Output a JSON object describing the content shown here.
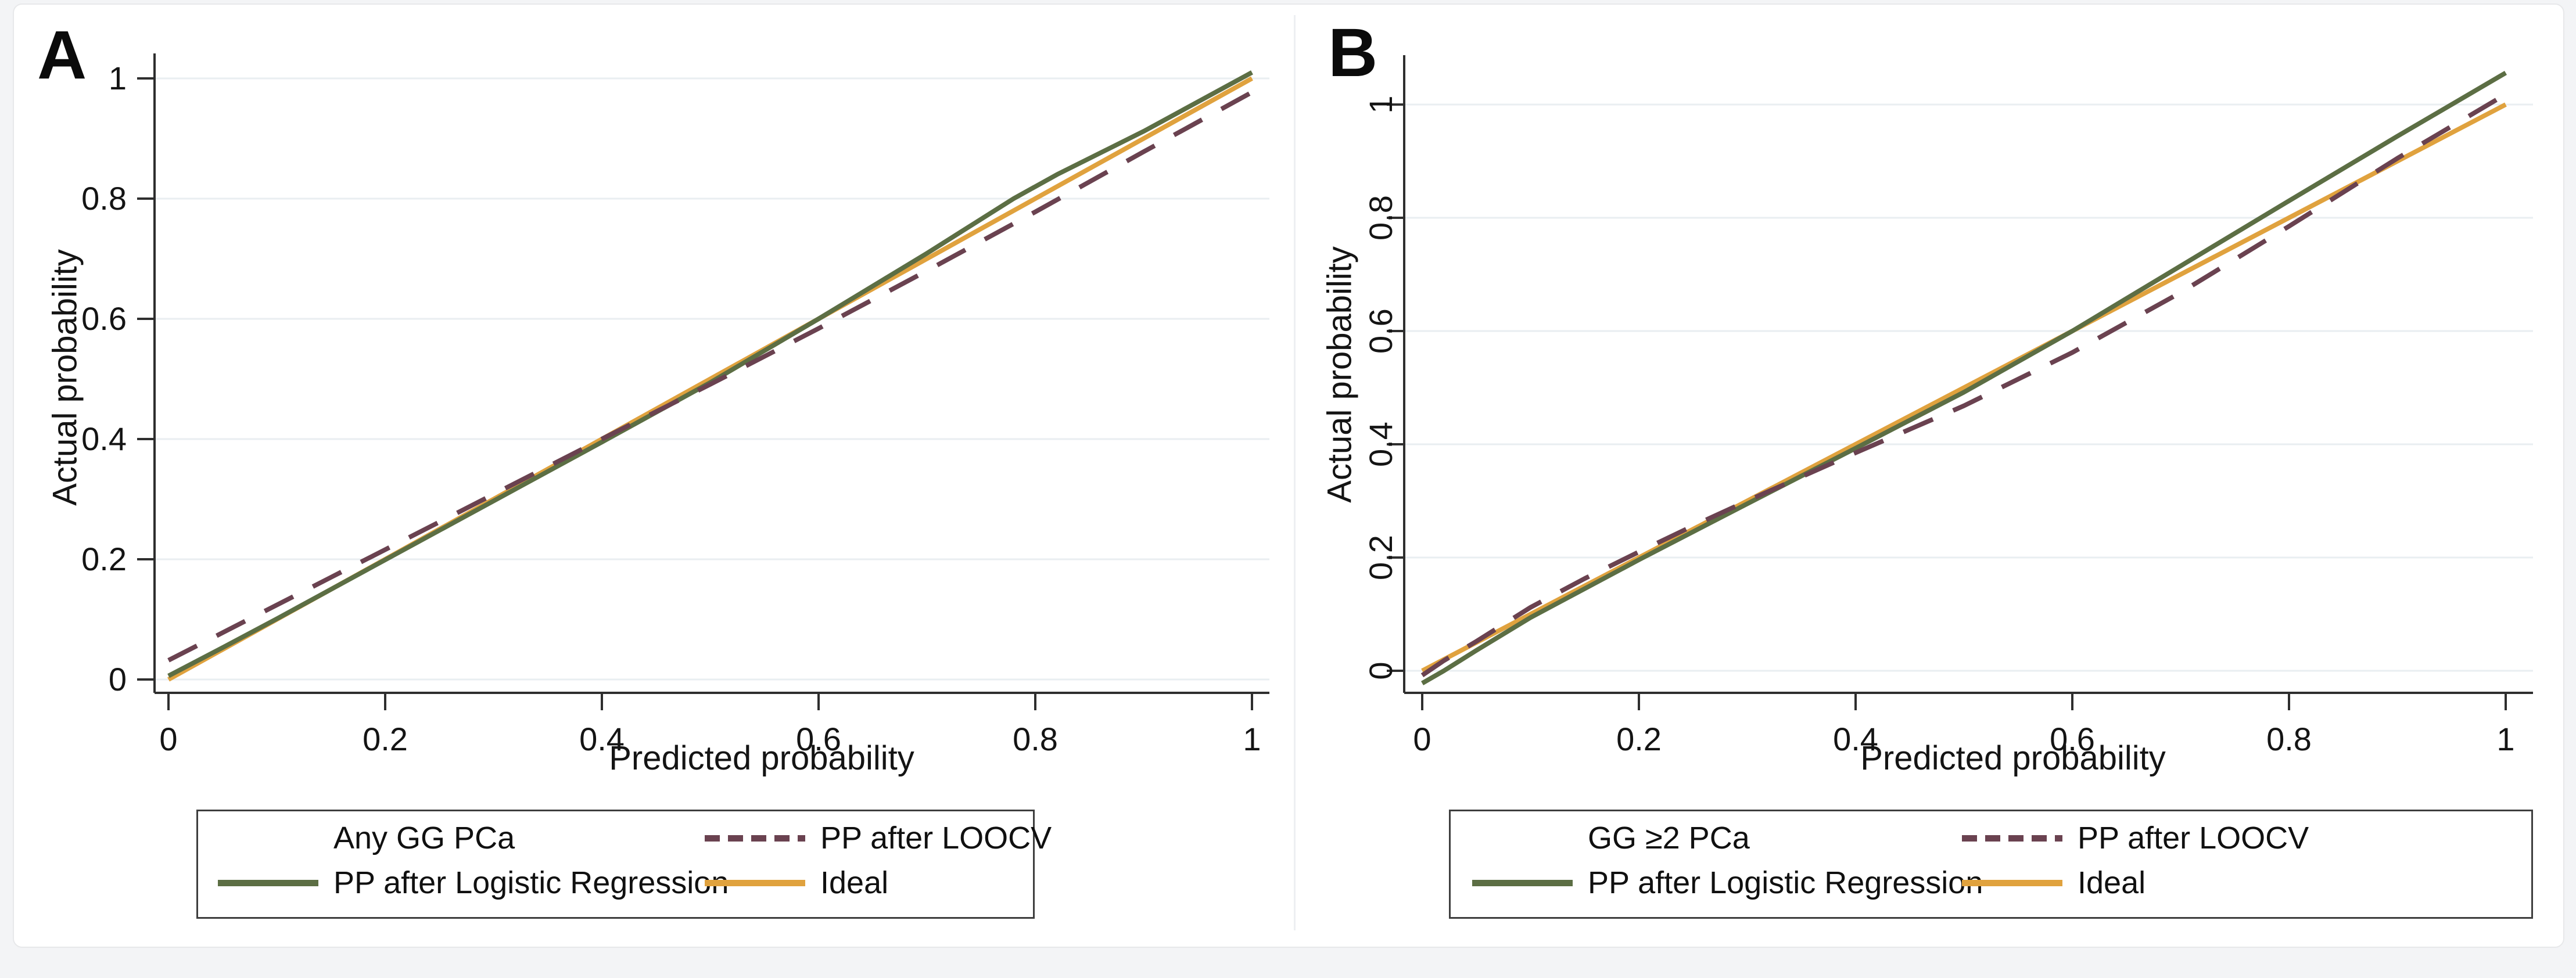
{
  "figure": {
    "colors": {
      "loocv": "#6a4250",
      "logistic": "#5c6e44",
      "ideal": "#e0a23e",
      "gridline": "#e9eef1",
      "axis": "#2e2e2e",
      "text": "#141414",
      "legend_border": "#3e3e3e",
      "panel_background": "#ffffff",
      "page_background": "#f3f4f6"
    },
    "panels": [
      {
        "panel_label": "A",
        "x_axis_title": "Predicted probability",
        "y_axis_title": "Actual probability",
        "x_ticks": [
          "0",
          "0.2",
          "0.4",
          "0.6",
          "0.8",
          "1"
        ],
        "y_ticks": [
          "0",
          "0.2",
          "0.4",
          "0.6",
          "0.8",
          "1"
        ],
        "legend": {
          "entries": [
            {
              "label": "Any GG PCa",
              "swatch": "none",
              "color_key": ""
            },
            {
              "label": "PP after LOOCV",
              "swatch": "dashed",
              "color_key": "loocv"
            },
            {
              "label": "PP after Logistic Regression",
              "swatch": "solid",
              "color_key": "logistic"
            },
            {
              "label": "Ideal",
              "swatch": "solid",
              "color_key": "ideal"
            }
          ]
        }
      },
      {
        "panel_label": "B",
        "x_axis_title": "Predicted probability",
        "y_axis_title": "Actual probability",
        "x_ticks": [
          "0",
          "0.2",
          "0.4",
          "0.6",
          "0.8",
          "1"
        ],
        "y_ticks": [
          "0",
          "0.2",
          "0.4",
          "0.6",
          "0.8",
          "1"
        ],
        "legend": {
          "entries": [
            {
              "label": "GG ≥2 PCa",
              "swatch": "none",
              "color_key": ""
            },
            {
              "label": "PP after LOOCV",
              "swatch": "dashed",
              "color_key": "loocv"
            },
            {
              "label": "PP after Logistic Regression",
              "swatch": "solid",
              "color_key": "logistic"
            },
            {
              "label": "Ideal",
              "swatch": "solid",
              "color_key": "ideal"
            }
          ]
        }
      }
    ]
  },
  "chart_data": [
    {
      "type": "line",
      "title": "Any GG PCa",
      "xlabel": "Predicted probability",
      "ylabel": "Actual probability",
      "xlim": [
        0,
        1
      ],
      "ylim": [
        0,
        1.05
      ],
      "x_ticks": [
        0,
        0.2,
        0.4,
        0.6,
        0.8,
        1
      ],
      "y_ticks": [
        0,
        0.2,
        0.4,
        0.6,
        0.8,
        1
      ],
      "grid": "horizontal",
      "legend_position": "bottom",
      "series": [
        {
          "name": "PP after LOOCV",
          "style": "dashed",
          "color": "#6a4250",
          "x": [
            0,
            0.05,
            0.1,
            0.15,
            0.2,
            0.3,
            0.4,
            0.5,
            0.6,
            0.7,
            0.8,
            0.9,
            1
          ],
          "y": [
            0.032,
            0.078,
            0.124,
            0.17,
            0.216,
            0.308,
            0.4,
            0.491,
            0.584,
            0.68,
            0.778,
            0.878,
            0.977
          ]
        },
        {
          "name": "PP after Logistic Regression",
          "style": "solid",
          "color": "#5c6e44",
          "x": [
            0,
            0.05,
            0.1,
            0.2,
            0.3,
            0.4,
            0.5,
            0.6,
            0.7,
            0.78,
            0.82,
            0.9,
            1
          ],
          "y": [
            0.006,
            0.053,
            0.101,
            0.199,
            0.297,
            0.395,
            0.494,
            0.6,
            0.709,
            0.8,
            0.84,
            0.912,
            1.01
          ]
        },
        {
          "name": "Ideal",
          "style": "solid",
          "color": "#e0a23e",
          "x": [
            0,
            1
          ],
          "y": [
            0,
            1
          ]
        }
      ]
    },
    {
      "type": "line",
      "title": "GG ≥2 PCa",
      "xlabel": "Predicted probability",
      "ylabel": "Actual probability",
      "xlim": [
        0,
        1
      ],
      "ylim": [
        -0.03,
        1.06
      ],
      "x_ticks": [
        0,
        0.2,
        0.4,
        0.6,
        0.8,
        1
      ],
      "y_ticks": [
        0,
        0.2,
        0.4,
        0.6,
        0.8,
        1
      ],
      "grid": "horizontal",
      "legend_position": "bottom",
      "series": [
        {
          "name": "PP after LOOCV",
          "style": "dashed",
          "color": "#6a4250",
          "x": [
            0,
            0.02,
            0.05,
            0.1,
            0.15,
            0.2,
            0.25,
            0.3,
            0.4,
            0.5,
            0.6,
            0.7,
            0.8,
            0.9,
            1
          ],
          "y": [
            -0.008,
            0.018,
            0.052,
            0.112,
            0.163,
            0.21,
            0.256,
            0.3,
            0.385,
            0.468,
            0.562,
            0.668,
            0.785,
            0.905,
            1.018
          ]
        },
        {
          "name": "PP after Logistic Regression",
          "style": "solid",
          "color": "#5c6e44",
          "x": [
            0,
            0.02,
            0.05,
            0.1,
            0.2,
            0.3,
            0.4,
            0.5,
            0.6,
            0.7,
            0.8,
            0.9,
            1
          ],
          "y": [
            -0.022,
            0.0,
            0.036,
            0.094,
            0.196,
            0.295,
            0.393,
            0.492,
            0.6,
            0.715,
            0.83,
            0.944,
            1.056
          ]
        },
        {
          "name": "Ideal",
          "style": "solid",
          "color": "#e0a23e",
          "x": [
            0,
            1
          ],
          "y": [
            0,
            1
          ]
        }
      ]
    }
  ]
}
